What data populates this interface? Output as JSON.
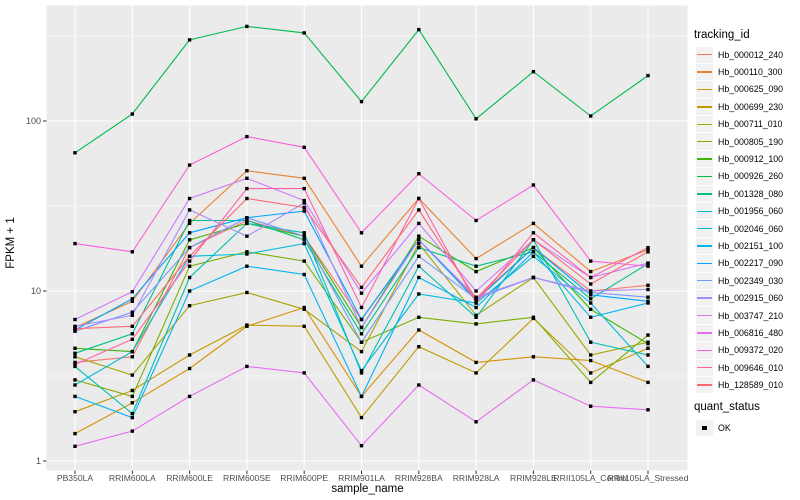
{
  "figure": {
    "ylabel": "FPKM + 1",
    "xlabel": "sample_name",
    "legend_title": "tracking_id",
    "quant_title": "quant_status",
    "quant_ok": "OK"
  },
  "chart_data": {
    "type": "line",
    "title": "",
    "xlabel": "sample_name",
    "ylabel": "FPKM + 1",
    "y_scale": "log10",
    "y_ticks": [
      1,
      10,
      100
    ],
    "ylim": [
      0.87,
      480
    ],
    "grid": true,
    "panel_color": "#EBEBEB",
    "grid_color": "#FFFFFF",
    "marker": "black-square",
    "marker_color": "#000000",
    "legend_position": "right",
    "legend_title": "tracking_id",
    "quant_status": {
      "title": "quant_status",
      "items": [
        "OK"
      ]
    },
    "categories": [
      "PB350LA",
      "RRIM600LA",
      "RRIM600LE",
      "RRIM600SE",
      "RRIM600PE",
      "RRIM901LA",
      "RRIM928BA",
      "RRIM928LA",
      "RRIM928LE",
      "RRII105LA_Control",
      "RRII105LA_Stressed"
    ],
    "series": [
      {
        "name": "Hb_000012_240",
        "color": "#F8766D",
        "values": [
          3.8,
          4.1,
          18,
          26,
          21,
          6.8,
          20,
          9.0,
          18,
          10,
          10.8
        ]
      },
      {
        "name": "Hb_000110_300",
        "color": "#EA8331",
        "values": [
          6.1,
          8.7,
          25,
          51,
          46,
          14,
          35,
          15.5,
          25,
          13,
          17.5
        ]
      },
      {
        "name": "Hb_000625_090",
        "color": "#D89000",
        "values": [
          1.45,
          2.2,
          3.5,
          6.2,
          8.0,
          2.4,
          5.9,
          3.8,
          4.1,
          3.9,
          2.9
        ]
      },
      {
        "name": "Hb_000699_230",
        "color": "#C09B00",
        "values": [
          1.95,
          2.6,
          4.2,
          6.3,
          6.2,
          1.8,
          4.7,
          3.3,
          6.9,
          3.3,
          4.6
        ]
      },
      {
        "name": "Hb_000711_010",
        "color": "#A3A500",
        "values": [
          4.1,
          3.2,
          8.2,
          9.8,
          7.8,
          4.4,
          19,
          7.2,
          12,
          4.2,
          5.0
        ]
      },
      {
        "name": "Hb_000805_190",
        "color": "#7CAE00",
        "values": [
          3.0,
          2.4,
          14,
          17,
          15,
          5.0,
          7.0,
          6.4,
          7.0,
          2.9,
          5.5
        ]
      },
      {
        "name": "Hb_000912_100",
        "color": "#39B600",
        "values": [
          4.6,
          4.4,
          20,
          25,
          21,
          6.1,
          21,
          13,
          18,
          7.8,
          4.9
        ]
      },
      {
        "name": "Hb_000926_260",
        "color": "#00BB4E",
        "values": [
          65,
          110,
          300,
          360,
          330,
          130,
          345,
          103,
          195,
          107,
          185
        ]
      },
      {
        "name": "Hb_001328_080",
        "color": "#00C087",
        "values": [
          4.3,
          5.6,
          26,
          26,
          20,
          5.6,
          18,
          14,
          17,
          9.0,
          14.5
        ]
      },
      {
        "name": "Hb_001956_060",
        "color": "#00C0AF",
        "values": [
          3.6,
          1.9,
          12,
          25,
          22,
          3.3,
          14,
          7.0,
          20,
          5.0,
          4.2
        ]
      },
      {
        "name": "Hb_002046_060",
        "color": "#00BCD8",
        "values": [
          2.8,
          4.4,
          16,
          16.5,
          19,
          3.4,
          9.6,
          8.5,
          16,
          8.5,
          3.6
        ]
      },
      {
        "name": "Hb_002151_100",
        "color": "#00B3F1",
        "values": [
          2.4,
          1.8,
          10,
          14,
          12.5,
          2.4,
          12,
          8.0,
          17,
          7.0,
          8.5
        ]
      },
      {
        "name": "Hb_002217_090",
        "color": "#00A5FF",
        "values": [
          5.9,
          9.0,
          22,
          27,
          29.5,
          6.8,
          20,
          8.8,
          18,
          9.5,
          8.7
        ]
      },
      {
        "name": "Hb_002349_030",
        "color": "#7997FF",
        "values": [
          5.8,
          7.5,
          18,
          27,
          21,
          5.0,
          16,
          9.0,
          12,
          9.8,
          9.2
        ]
      },
      {
        "name": "Hb_002915_060",
        "color": "#AC88FF",
        "values": [
          6.2,
          7.2,
          30,
          21,
          33,
          6.1,
          20,
          9.2,
          12,
          10,
          10.2
        ]
      },
      {
        "name": "Hb_003747_210",
        "color": "#CF78FF",
        "values": [
          6.8,
          9.9,
          35,
          46,
          34,
          9.7,
          25,
          10,
          20,
          12,
          14.6
        ]
      },
      {
        "name": "Hb_006816_480",
        "color": "#E96BF3",
        "values": [
          1.22,
          1.5,
          2.4,
          3.6,
          3.3,
          1.23,
          2.8,
          1.7,
          3.0,
          2.1,
          2.0
        ]
      },
      {
        "name": "Hb_009372_020",
        "color": "#FA61DB",
        "values": [
          19,
          17,
          55,
          81,
          70,
          22,
          49,
          26,
          42,
          15,
          14
        ]
      },
      {
        "name": "Hb_009646_010",
        "color": "#FF61AA",
        "values": [
          3.7,
          5.2,
          15,
          40,
          40,
          8.0,
          35,
          8.5,
          22,
          12,
          18
        ]
      },
      {
        "name": "Hb_128589_010",
        "color": "#FF6873",
        "values": [
          6.0,
          6.2,
          16,
          35,
          31,
          10.5,
          30,
          9.0,
          20,
          11,
          17
        ]
      }
    ]
  }
}
